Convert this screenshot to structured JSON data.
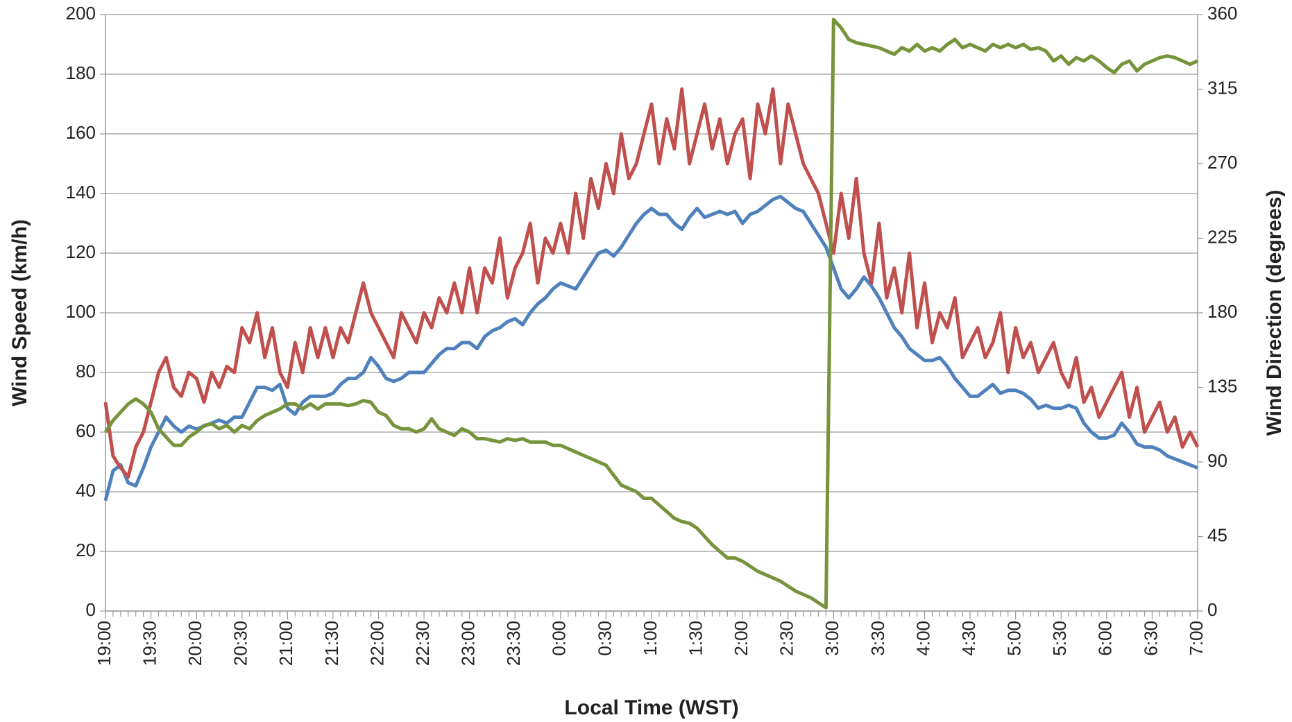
{
  "chart_data": {
    "type": "line",
    "x_label": "Local Time (WST)",
    "y_label": "Wind Speed (km/h)",
    "y2_label": "Wind Direction (degrees)",
    "categories": [
      "19:00",
      null,
      null,
      null,
      null,
      null,
      "19:30",
      null,
      null,
      null,
      null,
      null,
      "20:00",
      null,
      null,
      null,
      null,
      null,
      "20:30",
      null,
      null,
      null,
      null,
      null,
      "21:00",
      null,
      null,
      null,
      null,
      null,
      "21:30",
      null,
      null,
      null,
      null,
      null,
      "22:00",
      null,
      null,
      null,
      null,
      null,
      "22:30",
      null,
      null,
      null,
      null,
      null,
      "23:00",
      null,
      null,
      null,
      null,
      null,
      "23:30",
      null,
      null,
      null,
      null,
      null,
      "0:00",
      null,
      null,
      null,
      null,
      null,
      "0:30",
      null,
      null,
      null,
      null,
      null,
      "1:00",
      null,
      null,
      null,
      null,
      null,
      "1:30",
      null,
      null,
      null,
      null,
      null,
      "2:00",
      null,
      null,
      null,
      null,
      null,
      "2:30",
      null,
      null,
      null,
      null,
      null,
      "3:00",
      null,
      null,
      null,
      null,
      null,
      "3:30",
      null,
      null,
      null,
      null,
      null,
      "4:00",
      null,
      null,
      null,
      null,
      null,
      "4:30",
      null,
      null,
      null,
      null,
      null,
      "5:00",
      null,
      null,
      null,
      null,
      null,
      "5:30",
      null,
      null,
      null,
      null,
      null,
      "6:00",
      null,
      null,
      null,
      null,
      null,
      "6:30",
      null,
      null,
      null,
      null,
      null,
      "7:00"
    ],
    "series": [
      {
        "color": "#4f81bd",
        "values": [
          37,
          47,
          49,
          43,
          42,
          48,
          55,
          60,
          65,
          62,
          60,
          62,
          61,
          62,
          63,
          64,
          63,
          65,
          65,
          70,
          75,
          75,
          74,
          76,
          68,
          66,
          70,
          72,
          72,
          72,
          73,
          76,
          78,
          78,
          80,
          85,
          82,
          78,
          77,
          78,
          80,
          80,
          80,
          83,
          86,
          88,
          88,
          90,
          90,
          88,
          92,
          94,
          95,
          97,
          98,
          96,
          100,
          103,
          105,
          108,
          110,
          109,
          108,
          112,
          116,
          120,
          121,
          119,
          122,
          126,
          130,
          133,
          135,
          133,
          133,
          130,
          128,
          132,
          135,
          132,
          133,
          134,
          133,
          134,
          130,
          133,
          134,
          136,
          138,
          139,
          137,
          135,
          134,
          130,
          126,
          122,
          115,
          108,
          105,
          108,
          112,
          109,
          105,
          100,
          95,
          92,
          88,
          86,
          84,
          84,
          85,
          82,
          78,
          75,
          72,
          72,
          74,
          76,
          73,
          74,
          74,
          73,
          71,
          68,
          69,
          68,
          68,
          69,
          68,
          63,
          60,
          58,
          58,
          59,
          63,
          60,
          56,
          55,
          55,
          54,
          52,
          51,
          50,
          49,
          48
        ]
      },
      {
        "color": "#c0504d",
        "values": [
          70,
          52,
          48,
          45,
          55,
          60,
          70,
          80,
          85,
          75,
          72,
          80,
          78,
          70,
          80,
          75,
          82,
          80,
          95,
          90,
          100,
          85,
          95,
          80,
          75,
          90,
          80,
          95,
          85,
          95,
          85,
          95,
          90,
          100,
          110,
          100,
          95,
          90,
          85,
          100,
          95,
          90,
          100,
          95,
          105,
          100,
          110,
          100,
          115,
          100,
          115,
          110,
          125,
          105,
          115,
          120,
          130,
          110,
          125,
          120,
          130,
          120,
          140,
          125,
          145,
          135,
          150,
          140,
          160,
          145,
          150,
          160,
          170,
          150,
          165,
          155,
          175,
          150,
          160,
          170,
          155,
          165,
          150,
          160,
          165,
          145,
          170,
          160,
          175,
          150,
          170,
          160,
          150,
          145,
          140,
          130,
          120,
          140,
          125,
          145,
          120,
          110,
          130,
          105,
          115,
          100,
          120,
          95,
          110,
          90,
          100,
          95,
          105,
          85,
          90,
          95,
          85,
          90,
          100,
          80,
          95,
          85,
          90,
          80,
          85,
          90,
          80,
          75,
          85,
          70,
          75,
          65,
          70,
          75,
          80,
          65,
          75,
          60,
          65,
          70,
          60,
          65,
          55,
          60,
          55
        ]
      },
      {
        "color": "#77933c",
        "axis": "y2",
        "values": [
          108,
          115,
          120,
          125,
          128,
          125,
          120,
          110,
          105,
          100,
          100,
          105,
          108,
          112,
          113,
          110,
          112,
          108,
          112,
          110,
          115,
          118,
          120,
          122,
          125,
          125,
          122,
          125,
          122,
          125,
          125,
          125,
          124,
          125,
          127,
          126,
          120,
          118,
          112,
          110,
          110,
          108,
          110,
          116,
          110,
          108,
          106,
          110,
          108,
          104,
          104,
          103,
          102,
          104,
          103,
          104,
          102,
          102,
          102,
          100,
          100,
          98,
          96,
          94,
          92,
          90,
          88,
          82,
          76,
          74,
          72,
          68,
          68,
          64,
          60,
          56,
          54,
          53,
          50,
          45,
          40,
          36,
          32,
          32,
          30,
          27,
          24,
          22,
          20,
          18,
          15,
          12,
          10,
          8,
          5,
          2,
          357,
          352,
          345,
          343,
          342,
          341,
          340,
          338,
          336,
          340,
          338,
          342,
          338,
          340,
          338,
          342,
          345,
          340,
          342,
          340,
          338,
          342,
          340,
          342,
          340,
          342,
          339,
          340,
          338,
          332,
          335,
          330,
          334,
          332,
          335,
          332,
          328,
          325,
          330,
          332,
          326,
          330,
          332,
          334,
          335,
          334,
          332,
          330,
          332
        ]
      }
    ],
    "ylim": [
      0,
      200
    ],
    "yticks": [
      0,
      20,
      40,
      60,
      80,
      100,
      120,
      140,
      160,
      180,
      200
    ],
    "y2lim": [
      0,
      360
    ],
    "y2ticks": [
      0,
      45,
      90,
      135,
      180,
      225,
      270,
      315,
      360
    ],
    "grid": true
  }
}
